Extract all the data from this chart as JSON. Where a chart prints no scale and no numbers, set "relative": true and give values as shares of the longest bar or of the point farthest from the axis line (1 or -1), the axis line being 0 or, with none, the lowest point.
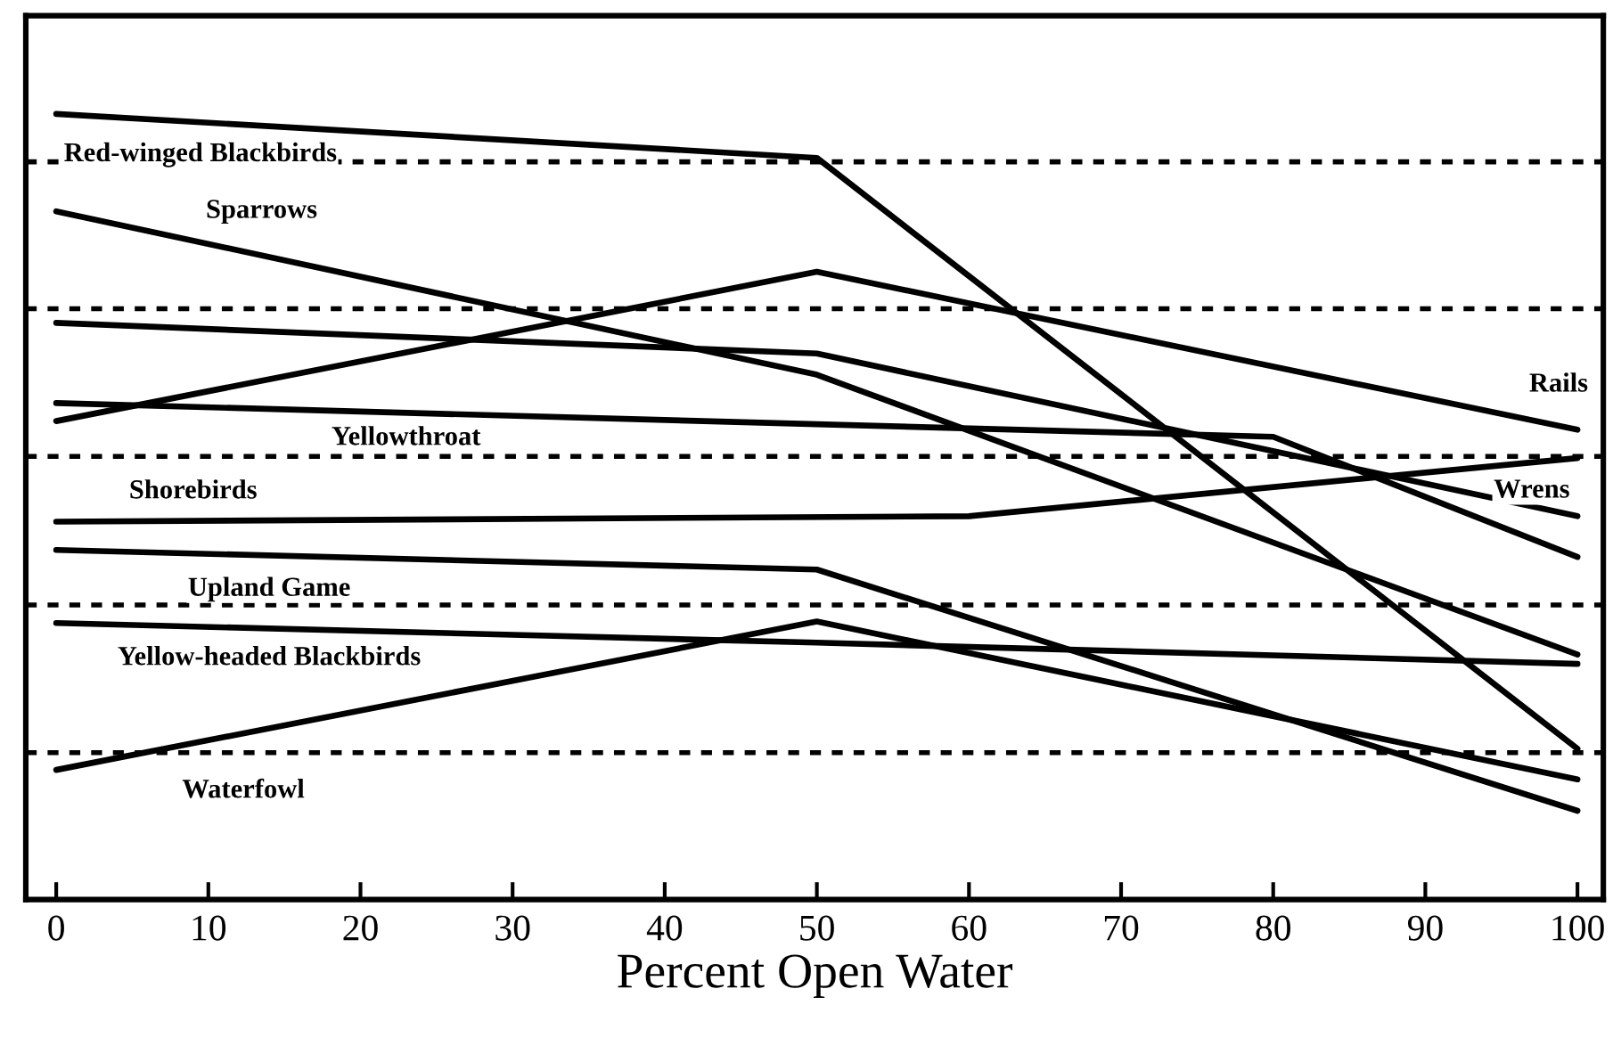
{
  "chart_data": {
    "type": "line",
    "relative": true,
    "xlabel": "Percent Open Water",
    "xlim": [
      -2,
      101.7
    ],
    "xticks": [
      0,
      10,
      20,
      30,
      40,
      50,
      60,
      70,
      80,
      90,
      100
    ],
    "grid": false,
    "legend": false,
    "marker": "none",
    "line_style": "solid",
    "tick_labels": "x",
    "series": [
      {
        "name": "Red-winged Blackbirds",
        "color": "#000000",
        "x": [
          0,
          50,
          100
        ],
        "values": [
          1.0,
          0.944,
          0.192
        ]
      },
      {
        "name": "Sparrows",
        "color": "#000000",
        "x": [
          0,
          50,
          100
        ],
        "values": [
          0.876,
          0.668,
          0.312
        ]
      },
      {
        "name": "Rails",
        "color": "#000000",
        "x": [
          0,
          50,
          100
        ],
        "values": [
          0.609,
          0.799,
          0.598
        ]
      },
      {
        "name": "Wrens",
        "color": "#000000",
        "x": [
          0,
          50,
          100
        ],
        "values": [
          0.734,
          0.695,
          0.488
        ]
      },
      {
        "name": "Yellowthroat",
        "color": "#000000",
        "x": [
          0,
          50,
          80,
          100
        ],
        "values": [
          0.632,
          0.605,
          0.589,
          0.436
        ]
      },
      {
        "name": "Shorebirds",
        "color": "#000000",
        "x": [
          0,
          60,
          100
        ],
        "values": [
          0.481,
          0.488,
          0.562
        ]
      },
      {
        "name": "Upland Game",
        "color": "#000000",
        "x": [
          0,
          50,
          100
        ],
        "values": [
          0.445,
          0.42,
          0.113
        ]
      },
      {
        "name": "Yellow-headed Blackbirds",
        "color": "#000000",
        "x": [
          0,
          50,
          100
        ],
        "values": [
          0.352,
          0.327,
          0.3
        ]
      },
      {
        "name": "Waterfowl",
        "color": "#000000",
        "x": [
          0,
          50,
          100
        ],
        "values": [
          0.165,
          0.354,
          0.153
        ]
      }
    ],
    "ref_lines": [
      {
        "axis": "y",
        "value": 0.939,
        "color": "#000000",
        "line_style": "dotted"
      },
      {
        "axis": "y",
        "value": 0.752,
        "color": "#000000",
        "line_style": "dotted"
      },
      {
        "axis": "y",
        "value": 0.564,
        "color": "#000000",
        "line_style": "dotted"
      },
      {
        "axis": "y",
        "value": 0.375,
        "color": "#000000",
        "line_style": "dotted"
      },
      {
        "axis": "y",
        "value": 0.187,
        "color": "#000000",
        "line_style": "dotted"
      }
    ]
  }
}
